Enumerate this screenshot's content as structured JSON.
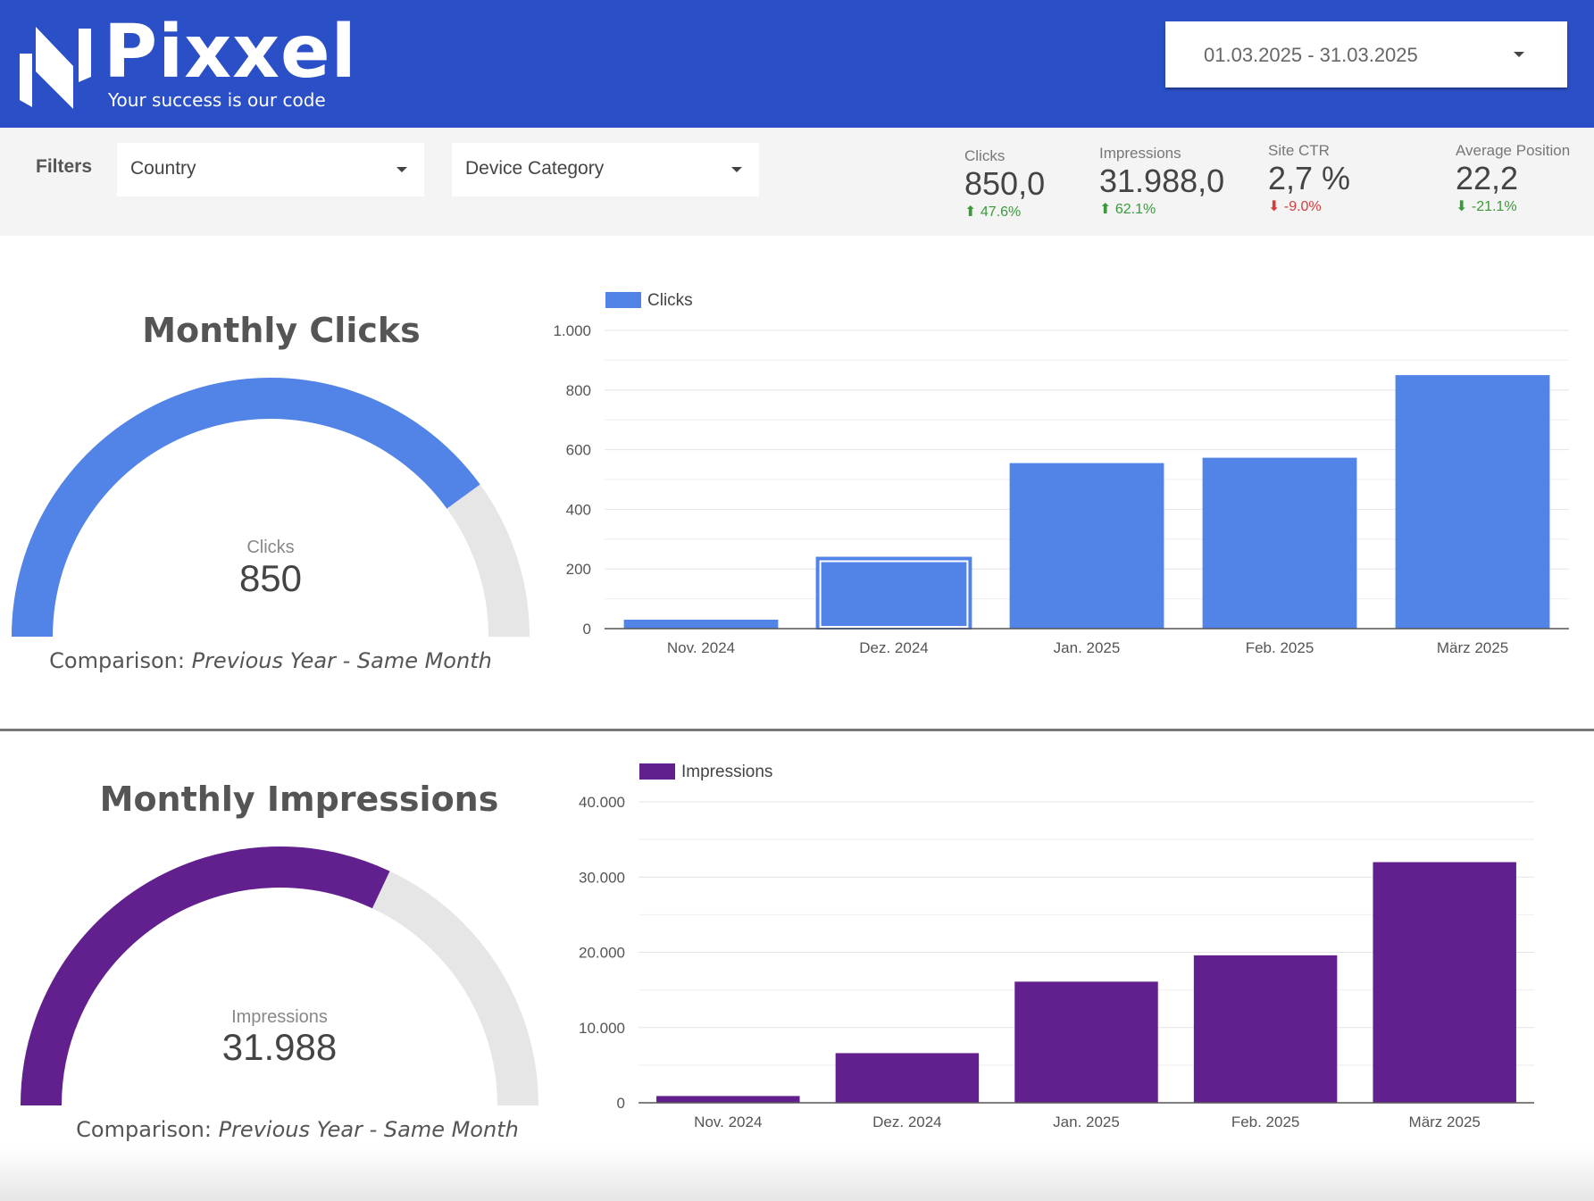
{
  "brand": {
    "name": "Pixxel",
    "tagline": "Your success is our code"
  },
  "date_range": {
    "value": "01.03.2025 - 31.03.2025"
  },
  "filters": {
    "label": "Filters",
    "country": "Country",
    "device": "Device Category"
  },
  "kpis": [
    {
      "label": "Clicks",
      "value": "850,0",
      "delta": "47.6%",
      "direction": "up",
      "color": "#3a9a3a"
    },
    {
      "label": "Impressions",
      "value": "31.988,0",
      "delta": "62.1%",
      "direction": "up",
      "color": "#3a9a3a"
    },
    {
      "label": "Site CTR",
      "value": "2,7 %",
      "delta": "-9.0%",
      "direction": "down",
      "color": "#d33c3c"
    },
    {
      "label": "Average Position",
      "value": "22,2",
      "delta": "-21.1%",
      "direction": "down",
      "color": "#3a9a3a"
    }
  ],
  "clicks_section": {
    "title": "Monthly Clicks",
    "gauge": {
      "label": "Clicks",
      "value": "850",
      "fill_fraction": 0.8,
      "color": "#5284e8",
      "track": "#e6e6e6"
    },
    "comparison_prefix": "Comparison: ",
    "comparison_text": "Previous Year - Same Month"
  },
  "impressions_section": {
    "title": "Monthly Impressions",
    "gauge": {
      "label": "Impressions",
      "value": "31.988",
      "fill_fraction": 0.64,
      "color": "#62208f",
      "track": "#e6e6e6"
    },
    "comparison_prefix": "Comparison: ",
    "comparison_text": "Previous Year - Same Month"
  },
  "chart_data": [
    {
      "type": "bar",
      "categories": [
        "Nov. 2024",
        "Dez. 2024",
        "Jan. 2025",
        "Feb. 2025",
        "März 2025"
      ],
      "series": [
        {
          "name": "Clicks",
          "values": [
            30,
            238,
            555,
            573,
            850
          ],
          "color": "#5284e8"
        }
      ],
      "ylim": [
        0,
        1000
      ],
      "yticks": [
        0,
        200,
        400,
        600,
        800,
        1000
      ],
      "ytick_labels": [
        "0",
        "200",
        "400",
        "600",
        "800",
        "1.000"
      ],
      "highlighted_category": "Dez. 2024",
      "legend_position": "top-left",
      "grid": true
    },
    {
      "type": "bar",
      "categories": [
        "Nov. 2024",
        "Dez. 2024",
        "Jan. 2025",
        "Feb. 2025",
        "März 2025"
      ],
      "series": [
        {
          "name": "Impressions",
          "values": [
            900,
            6600,
            16100,
            19600,
            31988
          ],
          "color": "#62208f"
        }
      ],
      "ylim": [
        0,
        40000
      ],
      "yticks": [
        0,
        10000,
        20000,
        30000,
        40000
      ],
      "ytick_labels": [
        "0",
        "10.000",
        "20.000",
        "30.000",
        "40.000"
      ],
      "legend_position": "top-left",
      "grid": true
    }
  ]
}
